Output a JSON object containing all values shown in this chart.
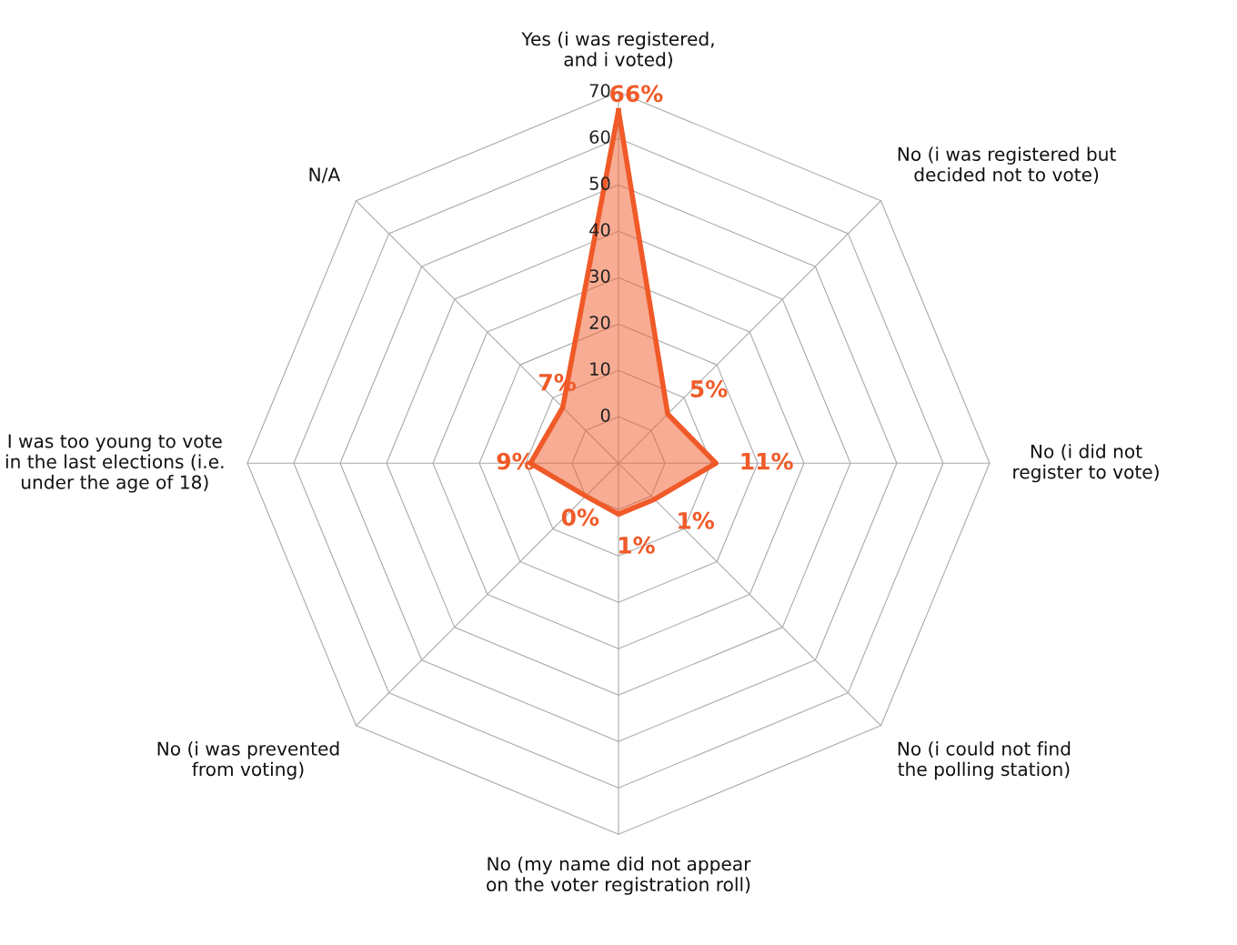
{
  "chart_data": {
    "type": "radar",
    "categories": [
      "Yes (i was registered,\nand i voted)",
      "No (i was registered but\ndecided not to vote)",
      "No (i did not\nregister to vote)",
      "No (i could not find\nthe polling station)",
      "No (my name did not appear\non the voter registration roll)",
      "No (i was prevented\nfrom voting)",
      "I was too young to vote\nin the last elections (i.e.\nunder the age of 18)",
      "N/A"
    ],
    "series": [
      {
        "color": "#f05a28",
        "values": [
          66,
          5,
          11,
          1,
          1,
          0,
          9,
          7
        ],
        "value_labels": [
          "66%",
          "5%",
          "11%",
          "1%",
          "1%",
          "0%",
          "9%",
          "7%"
        ]
      }
    ],
    "ylim": [
      -10,
      70
    ],
    "yticks": [
      0,
      10,
      20,
      30,
      40,
      50,
      60,
      70
    ],
    "grid": true
  }
}
